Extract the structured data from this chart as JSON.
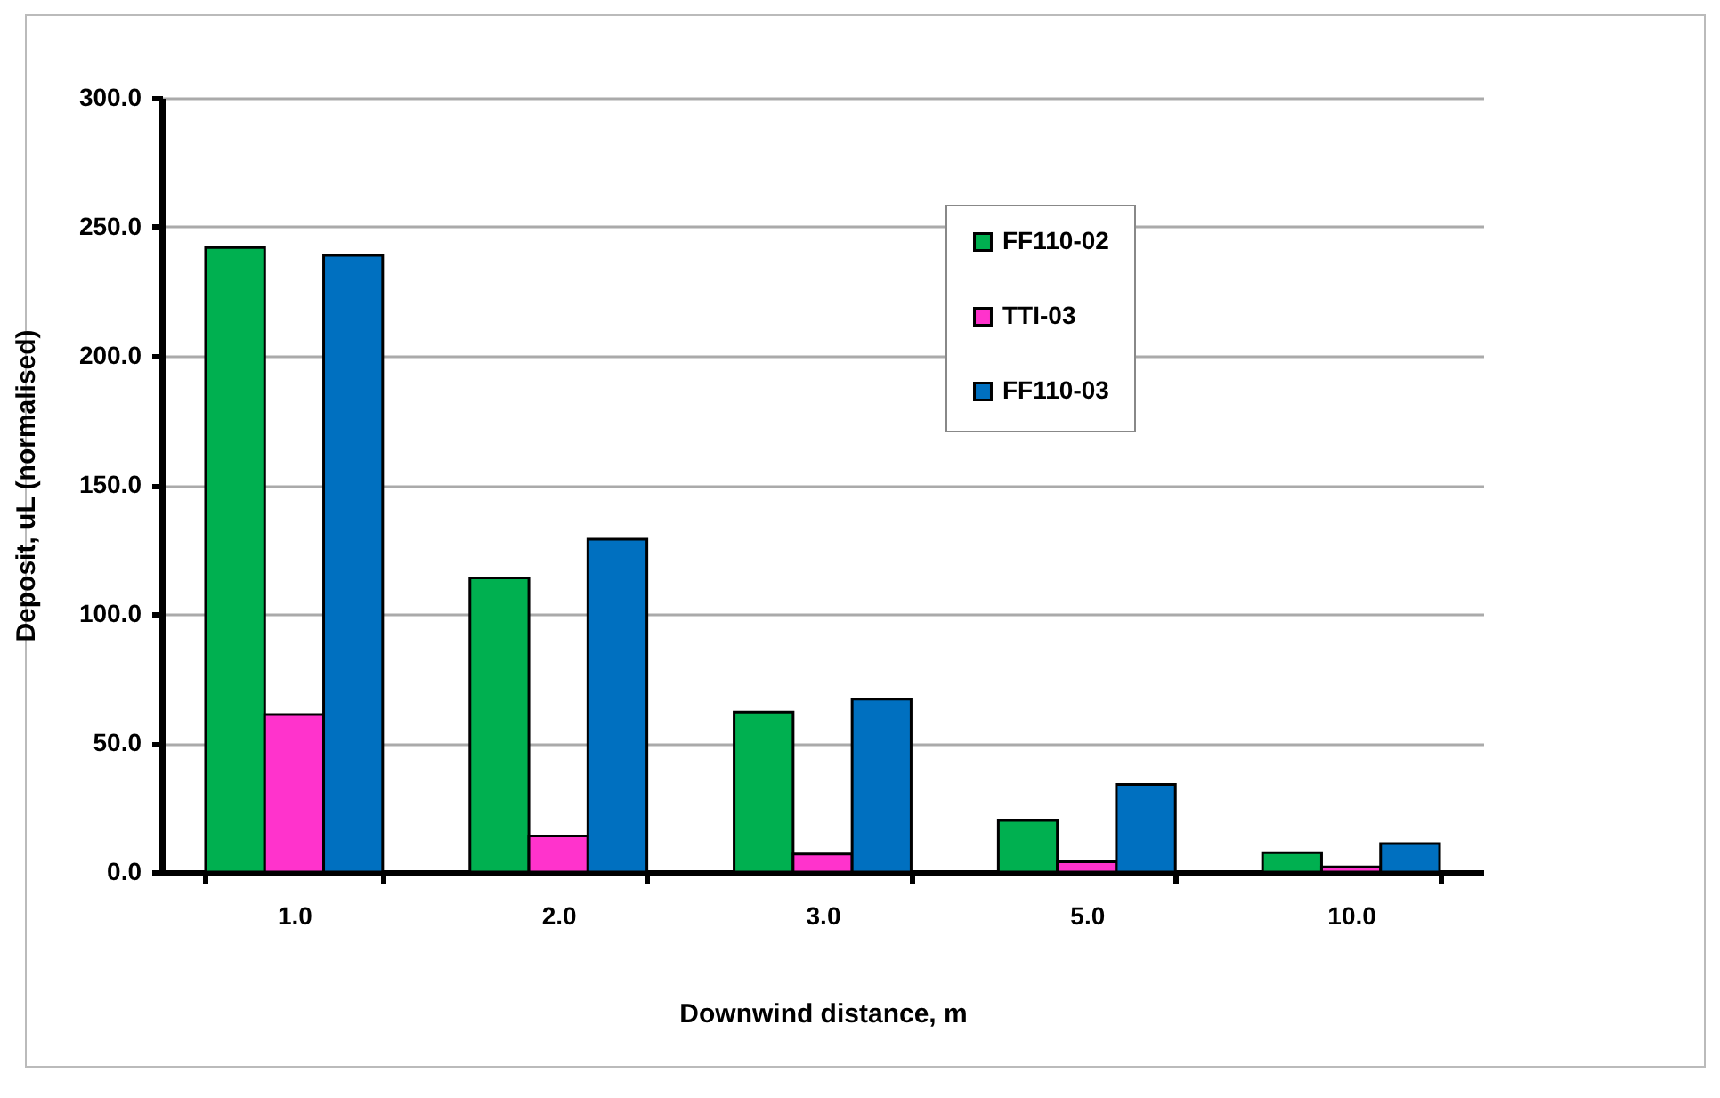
{
  "chart_data": {
    "type": "bar",
    "xlabel": "Downwind distance, m",
    "ylabel": "Deposit, uL (normalised)",
    "categories": [
      "1.0",
      "2.0",
      "3.0",
      "5.0",
      "10.0"
    ],
    "series": [
      {
        "name": "FF110-02",
        "color": "#00b050",
        "values": [
          242,
          114,
          62,
          20,
          7.5
        ]
      },
      {
        "name": "TTI-03",
        "color": "#ff33cc",
        "values": [
          61,
          14,
          7,
          4,
          2
        ]
      },
      {
        "name": "FF110-03",
        "color": "#0070c0",
        "values": [
          239,
          129,
          67,
          34,
          11
        ]
      }
    ],
    "ylim": [
      0,
      300
    ],
    "yticks": [
      {
        "value": 0,
        "label": "0.0"
      },
      {
        "value": 50,
        "label": "50.0"
      },
      {
        "value": 100,
        "label": "100.0"
      },
      {
        "value": 150,
        "label": "150.0"
      },
      {
        "value": 200,
        "label": "200.0"
      },
      {
        "value": 250,
        "label": "250.0"
      },
      {
        "value": 300,
        "label": "300.0"
      }
    ],
    "grid": "y",
    "legend": "top right"
  }
}
